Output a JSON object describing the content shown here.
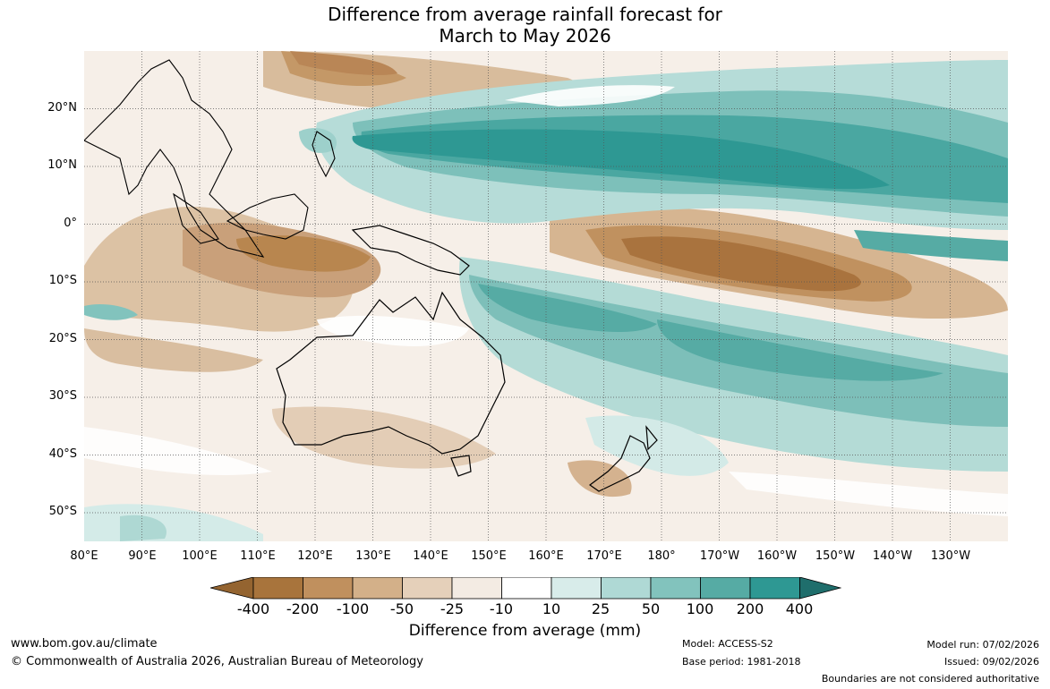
{
  "title": {
    "line1": "Difference from average rainfall forecast for",
    "line2": "March to May 2026"
  },
  "map": {
    "lat_labels": [
      "20°N",
      "10°N",
      "0°",
      "10°S",
      "20°S",
      "30°S",
      "40°S",
      "50°S"
    ],
    "lon_labels": [
      "80°E",
      "90°E",
      "100°E",
      "110°E",
      "120°E",
      "130°E",
      "140°E",
      "150°E",
      "160°E",
      "170°E",
      "180°",
      "170°W",
      "160°W",
      "150°W",
      "140°W",
      "130°W"
    ]
  },
  "legend": {
    "ticks": [
      "-400",
      "-200",
      "-100",
      "-50",
      "-25",
      "-10",
      "10",
      "25",
      "50",
      "100",
      "200",
      "400"
    ],
    "colors": [
      "#a8743c",
      "#c0905e",
      "#d3b089",
      "#e5d0ba",
      "#f3ebe3",
      "#ffffff",
      "#d8ecea",
      "#afd9d5",
      "#82c3bd",
      "#56aba4",
      "#2e9893",
      "#1f6e6c"
    ],
    "low_arrow_color": "#946430",
    "title": "Difference from average (mm)"
  },
  "footer": {
    "website": "www.bom.gov.au/climate",
    "copyright": "© Commonwealth of Australia 2026, Australian Bureau of Meteorology",
    "model": "Model: ACCESS-S2",
    "base_period": "Base period: 1981-2018",
    "model_run": "Model run: 07/02/2026",
    "issued": "Issued: 09/02/2026",
    "disclaimer": "Boundaries are not considered authoritative"
  }
}
